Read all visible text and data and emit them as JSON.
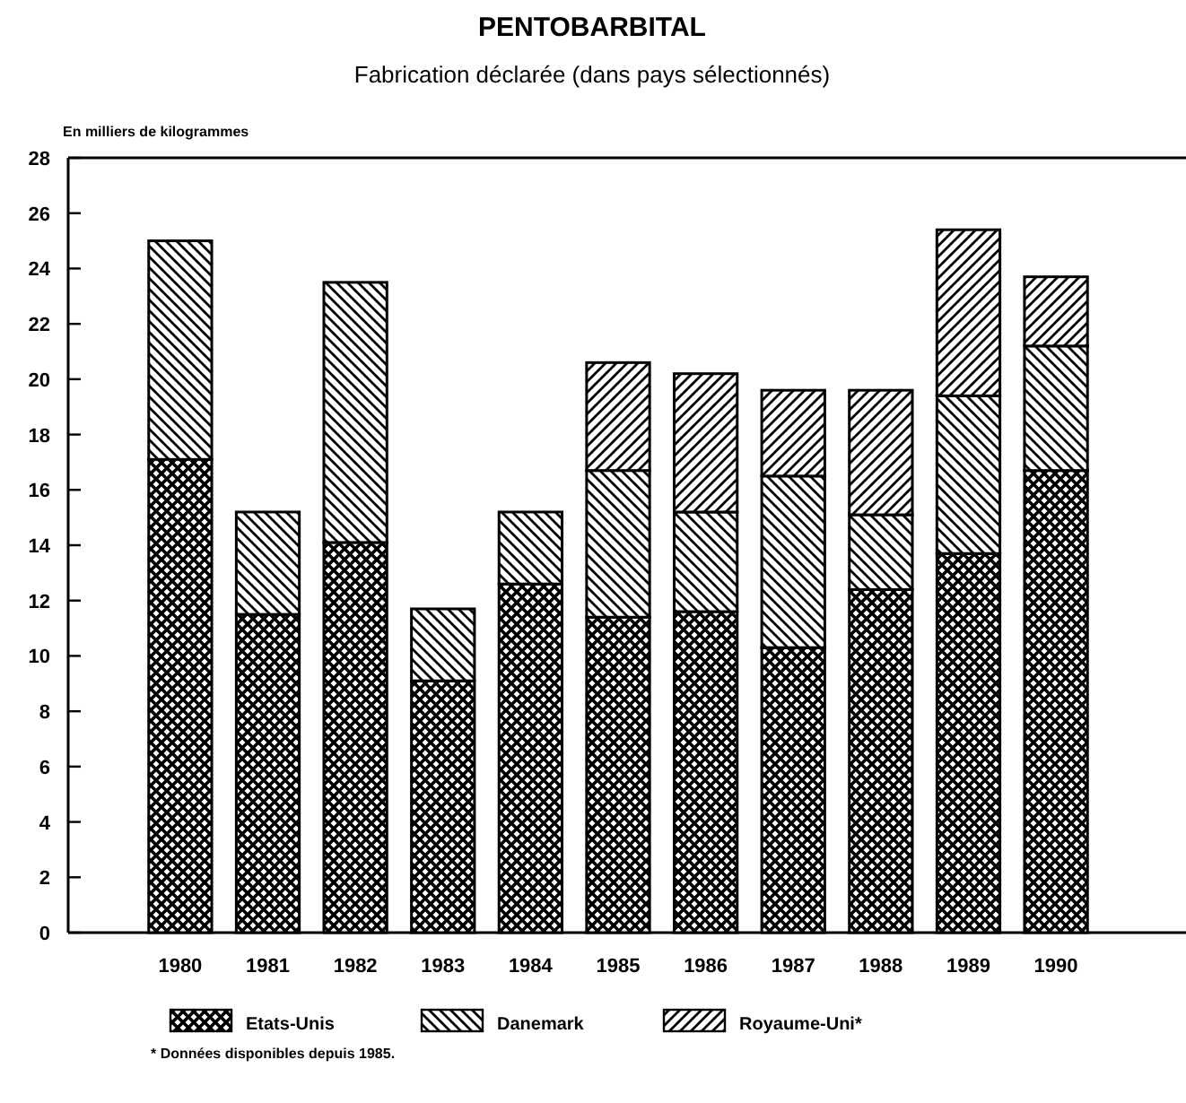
{
  "chart_data": {
    "type": "bar",
    "title": "PENTOBARBITAL",
    "subtitle": "Fabrication déclarée (dans pays sélectionnés)",
    "ylabel": "En milliers de kilogrammes",
    "stacked": true,
    "categories": [
      "1980",
      "1981",
      "1982",
      "1983",
      "1984",
      "1985",
      "1986",
      "1987",
      "1988",
      "1989",
      "1990"
    ],
    "series": [
      {
        "name": "Etats-Unis",
        "color": "#000000",
        "values": [
          17.1,
          11.5,
          14.1,
          9.1,
          12.6,
          11.4,
          11.6,
          10.3,
          12.4,
          13.7,
          16.7
        ]
      },
      {
        "name": "Danemark",
        "color": "#000000",
        "values": [
          7.9,
          3.7,
          9.4,
          2.6,
          2.6,
          5.3,
          3.6,
          6.2,
          2.7,
          5.7,
          4.5
        ]
      },
      {
        "name": "Royaume-Uni*",
        "color": "#000000",
        "values": [
          null,
          null,
          null,
          null,
          null,
          3.9,
          5.0,
          3.1,
          4.5,
          6.0,
          2.5
        ]
      }
    ],
    "ylim": [
      0,
      28
    ],
    "yticks": [
      0,
      2,
      4,
      6,
      8,
      10,
      12,
      14,
      16,
      18,
      20,
      22,
      24,
      26,
      28
    ],
    "grid": false,
    "legend": "bottom",
    "annotations": [
      "* Données disponibles depuis 1985."
    ]
  }
}
